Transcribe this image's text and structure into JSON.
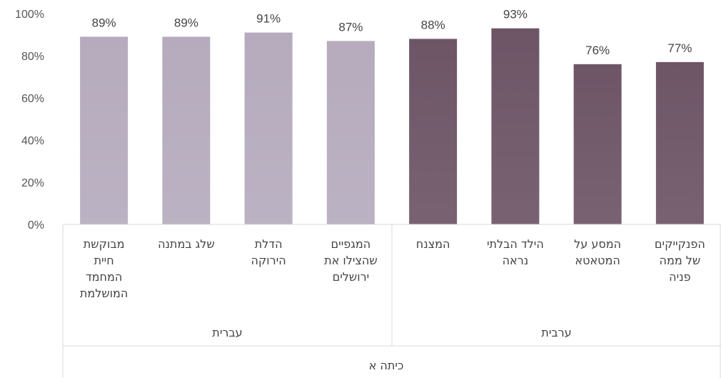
{
  "chart_data": {
    "type": "bar",
    "categories": [
      [
        "מבוקשת",
        "חיית",
        "המחמד",
        "המושלמת"
      ],
      [
        "שלג במתנה"
      ],
      [
        "הדלת",
        "הירוקה"
      ],
      [
        "המגפיים",
        "שהצילו את",
        "ירושלים"
      ],
      [
        "המצנח"
      ],
      [
        "הילד הבלתי",
        "נראה"
      ],
      [
        "המסע על",
        "המטאטא"
      ],
      [
        "הפנקייקים",
        "של ממה",
        "פניה"
      ]
    ],
    "values": [
      0.89,
      0.89,
      0.91,
      0.87,
      0.88,
      0.93,
      0.76,
      0.77
    ],
    "data_labels": [
      "89%",
      "89%",
      "91%",
      "87%",
      "88%",
      "93%",
      "76%",
      "77%"
    ],
    "groups": [
      {
        "name": "עברית",
        "start": 0,
        "end": 3,
        "color": "#b5abbd"
      },
      {
        "name": "ערבית",
        "start": 4,
        "end": 7,
        "color": "#6d5566"
      }
    ],
    "top_group_label": "כיתה א",
    "ylim": [
      0,
      1
    ],
    "yticks": [
      "0%",
      "20%",
      "40%",
      "60%",
      "80%",
      "100%"
    ],
    "grid": false,
    "legend": false
  }
}
